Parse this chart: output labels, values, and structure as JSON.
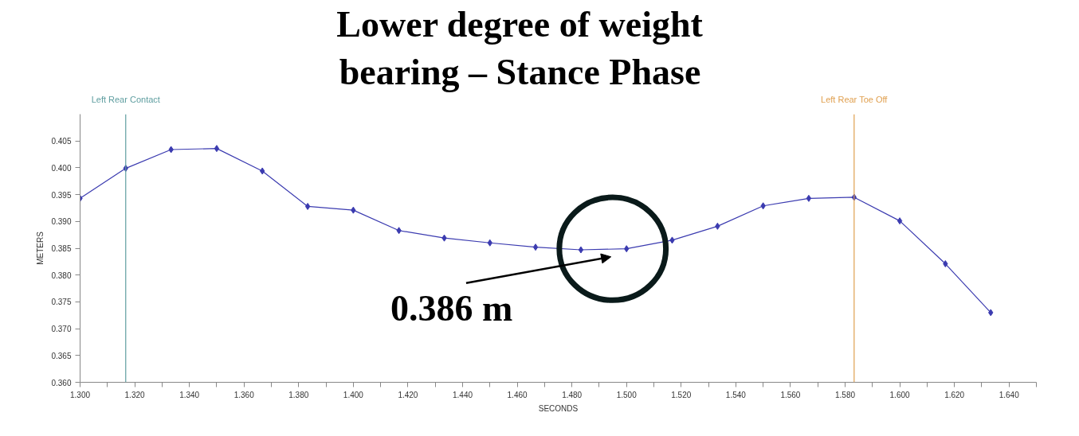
{
  "chart_data": {
    "type": "line",
    "title": "Lower degree of weight bearing – Stance Phase",
    "xlabel": "SECONDS",
    "ylabel": "METERS",
    "x": [
      1.3,
      1.3167,
      1.3333,
      1.35,
      1.3667,
      1.3833,
      1.4,
      1.4167,
      1.4333,
      1.45,
      1.4667,
      1.4833,
      1.5,
      1.5167,
      1.5333,
      1.55,
      1.5667,
      1.5833,
      1.6,
      1.6167,
      1.6333
    ],
    "series": [
      {
        "color": "#3b3bb0",
        "values": [
          0.3943,
          0.3999,
          0.4034,
          0.4036,
          0.3994,
          0.3928,
          0.3921,
          0.3883,
          0.3869,
          0.386,
          0.3852,
          0.3847,
          0.3849,
          0.3865,
          0.3891,
          0.3929,
          0.3943,
          0.3945,
          0.3901,
          0.3821,
          0.373
        ]
      }
    ],
    "marker": "diamond",
    "line_style": "solid",
    "grid": false,
    "xlim": [
      1.3,
      1.65
    ],
    "xticks": [
      {
        "value": 1.3,
        "label": "1.300"
      },
      {
        "value": 1.32,
        "label": "1.320"
      },
      {
        "value": 1.34,
        "label": "1.340"
      },
      {
        "value": 1.36,
        "label": "1.360"
      },
      {
        "value": 1.38,
        "label": "1.380"
      },
      {
        "value": 1.4,
        "label": "1.400"
      },
      {
        "value": 1.42,
        "label": "1.420"
      },
      {
        "value": 1.44,
        "label": "1.440"
      },
      {
        "value": 1.46,
        "label": "1.460"
      },
      {
        "value": 1.48,
        "label": "1.480"
      },
      {
        "value": 1.5,
        "label": "1.500"
      },
      {
        "value": 1.52,
        "label": "1.520"
      },
      {
        "value": 1.54,
        "label": "1.540"
      },
      {
        "value": 1.56,
        "label": "1.560"
      },
      {
        "value": 1.58,
        "label": "1.580"
      },
      {
        "value": 1.6,
        "label": "1.600"
      },
      {
        "value": 1.62,
        "label": "1.620"
      },
      {
        "value": 1.64,
        "label": "1.640"
      }
    ],
    "ylim": [
      0.36,
      0.41
    ],
    "yticks": [
      {
        "value": 0.36,
        "label": "0.360"
      },
      {
        "value": 0.365,
        "label": "0.365"
      },
      {
        "value": 0.37,
        "label": "0.370"
      },
      {
        "value": 0.375,
        "label": "0.375"
      },
      {
        "value": 0.38,
        "label": "0.380"
      },
      {
        "value": 0.385,
        "label": "0.385"
      },
      {
        "value": 0.39,
        "label": "0.390"
      },
      {
        "value": 0.395,
        "label": "0.395"
      },
      {
        "value": 0.4,
        "label": "0.400"
      },
      {
        "value": 0.405,
        "label": "0.405"
      }
    ],
    "ref_lines": [
      {
        "axis": "x",
        "value": 1.3167,
        "label": "Left Rear Contact",
        "color": "#5f9ea0"
      },
      {
        "axis": "x",
        "value": 1.5833,
        "label": "Left Rear Toe Off",
        "color": "#e0a050"
      }
    ],
    "annotations": [
      "0.386 m"
    ]
  }
}
